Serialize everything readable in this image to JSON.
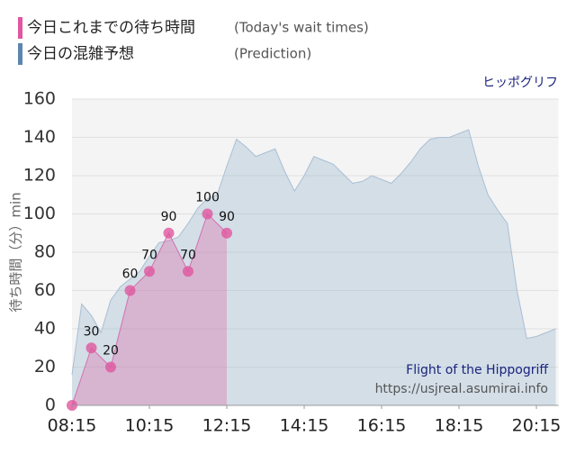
{
  "chart_data": {
    "type": "area",
    "title": "ヒッポグリフ",
    "y_label": "待ち時間（分）min",
    "watermark": [
      "Flight of the Hippogriff",
      "https://usjreal.asumirai.info"
    ],
    "xlim": [
      "08:15",
      "20:45"
    ],
    "xticks": [
      "08:15",
      "10:15",
      "12:15",
      "14:15",
      "16:15",
      "18:15",
      "20:15"
    ],
    "ylim": [
      0,
      160
    ],
    "yticks": [
      0,
      20,
      40,
      60,
      80,
      100,
      120,
      140,
      160
    ],
    "grid": true,
    "series": [
      {
        "name": "今日これまでの待ち時間",
        "note": "(Today's wait times)",
        "color": "#e0569f",
        "x": [
          "08:15",
          "08:45",
          "09:15",
          "09:45",
          "10:15",
          "10:45",
          "11:15",
          "11:45",
          "12:15"
        ],
        "values": [
          0,
          30,
          20,
          60,
          70,
          90,
          70,
          100,
          90
        ]
      },
      {
        "name": "今日の混雑予想",
        "note": "(Prediction)",
        "color": "#5b86b0",
        "x": [
          "08:15",
          "08:30",
          "08:45",
          "09:00",
          "09:15",
          "09:30",
          "09:45",
          "10:00",
          "10:15",
          "10:30",
          "10:45",
          "11:00",
          "11:15",
          "11:30",
          "11:45",
          "12:00",
          "12:15",
          "12:30",
          "12:45",
          "13:00",
          "13:15",
          "13:30",
          "13:45",
          "14:00",
          "14:15",
          "14:30",
          "14:45",
          "15:00",
          "15:15",
          "15:30",
          "15:45",
          "16:00",
          "16:15",
          "16:30",
          "16:45",
          "17:00",
          "17:15",
          "17:30",
          "17:45",
          "18:00",
          "18:15",
          "18:30",
          "18:45",
          "19:00",
          "19:15",
          "19:30",
          "19:45",
          "20:00",
          "20:15",
          "20:30",
          "20:45"
        ],
        "values": [
          16,
          53,
          47,
          38,
          55,
          62,
          66,
          70,
          78,
          85,
          86,
          88,
          95,
          103,
          108,
          110,
          125,
          139,
          135,
          130,
          132,
          134,
          122,
          112,
          120,
          130,
          128,
          126,
          121,
          116,
          117,
          120,
          118,
          116,
          121,
          127,
          134,
          139,
          140,
          140,
          142,
          144,
          125,
          110,
          102,
          95,
          60,
          35,
          36,
          38,
          40
        ]
      }
    ]
  }
}
